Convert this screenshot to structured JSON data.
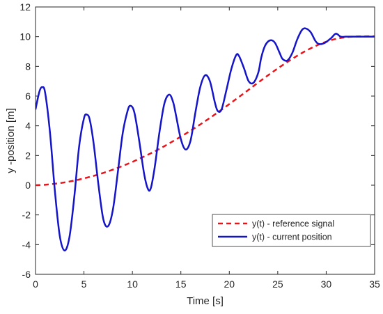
{
  "chart_data": {
    "type": "line",
    "xlabel": "Time [s]",
    "ylabel": "y -position [m]",
    "xlim": [
      0,
      35
    ],
    "ylim": [
      -6,
      12
    ],
    "xticks": [
      0,
      5,
      10,
      15,
      20,
      25,
      30,
      35
    ],
    "yticks": [
      -6,
      -4,
      -2,
      0,
      2,
      4,
      6,
      8,
      10,
      12
    ],
    "grid": false,
    "legend_position": "bottom-right",
    "series": [
      {
        "name": "y(t) - reference signal",
        "color": "#e8141a",
        "style": "dashed",
        "x": [
          0,
          1,
          2,
          3,
          4,
          5,
          6,
          7,
          8,
          9,
          10,
          11,
          12,
          13,
          14,
          15,
          16,
          17,
          18,
          19,
          20,
          21,
          22,
          23,
          24,
          25,
          26,
          27,
          28,
          29,
          30,
          31,
          32,
          33,
          34,
          35
        ],
        "y": [
          0.0,
          0.03,
          0.1,
          0.19,
          0.31,
          0.46,
          0.63,
          0.83,
          1.05,
          1.3,
          1.57,
          1.87,
          2.18,
          2.52,
          2.89,
          3.27,
          3.67,
          4.09,
          4.53,
          4.99,
          5.46,
          5.94,
          6.43,
          6.92,
          7.4,
          7.86,
          8.3,
          8.71,
          9.08,
          9.4,
          9.66,
          9.85,
          9.96,
          10.01,
          10.02,
          10.03
        ]
      },
      {
        "name": "y(t) - current position",
        "color": "#1414c8",
        "style": "solid",
        "x": [
          0,
          0.4,
          0.7,
          1.0,
          1.5,
          2.0,
          2.5,
          3.0,
          3.5,
          4.0,
          4.5,
          5.0,
          5.3,
          5.6,
          6.0,
          6.5,
          7.0,
          7.5,
          8.0,
          8.5,
          9.0,
          9.5,
          9.8,
          10.2,
          10.7,
          11.2,
          11.6,
          11.9,
          12.3,
          12.8,
          13.3,
          13.8,
          14.2,
          14.5,
          15.0,
          15.5,
          16.0,
          16.5,
          17.0,
          17.5,
          18.0,
          18.5,
          18.8,
          19.2,
          19.7,
          20.2,
          20.7,
          21.0,
          21.5,
          22.0,
          22.5,
          23.0,
          23.3,
          23.7,
          24.2,
          24.7,
          25.2,
          25.5,
          26.0,
          26.5,
          27.0,
          27.5,
          27.9,
          28.4,
          28.9,
          29.3,
          29.9,
          30.5,
          31.0,
          31.5,
          32.0,
          32.5,
          33.0,
          33.4,
          33.8,
          34.2,
          34.6,
          35.0
        ],
        "y": [
          5.1,
          6.3,
          6.6,
          6.2,
          3.5,
          -0.4,
          -3.4,
          -4.4,
          -3.5,
          -0.8,
          2.6,
          4.5,
          4.75,
          4.4,
          2.8,
          0.0,
          -2.3,
          -2.75,
          -1.6,
          0.9,
          3.5,
          5.0,
          5.35,
          4.9,
          3.0,
          0.8,
          -0.25,
          -0.2,
          1.2,
          3.6,
          5.5,
          6.1,
          5.6,
          4.7,
          3.1,
          2.4,
          3.0,
          4.9,
          6.6,
          7.4,
          7.0,
          5.6,
          5.0,
          5.1,
          6.4,
          7.8,
          8.75,
          8.7,
          7.9,
          7.0,
          6.9,
          7.6,
          8.6,
          9.4,
          9.75,
          9.6,
          8.9,
          8.5,
          8.4,
          8.9,
          9.8,
          10.45,
          10.55,
          10.3,
          9.7,
          9.5,
          9.6,
          9.9,
          10.2,
          10.0,
          10.0,
          10.0,
          10.0,
          10.0,
          10.0,
          10.0,
          10.0,
          10.0
        ]
      }
    ]
  }
}
